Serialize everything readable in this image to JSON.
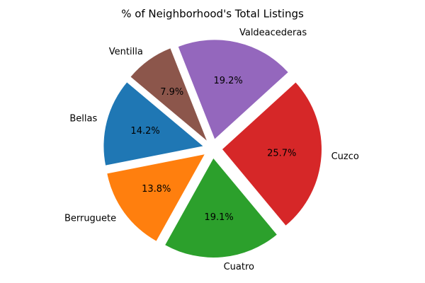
{
  "chart_data": {
    "type": "pie",
    "title": "% of Neighborhood's Total Listings",
    "categories": [
      "Bellas",
      "Berruguete",
      "Cuatro",
      "Cuzco",
      "Valdeacederas",
      "Ventilla"
    ],
    "values": [
      14.2,
      13.8,
      19.1,
      25.7,
      19.2,
      7.9
    ],
    "value_labels": [
      "14.2%",
      "13.8%",
      "19.1%",
      "25.7%",
      "19.2%",
      "7.9%"
    ],
    "colors": [
      "#1f77b4",
      "#ff7f0e",
      "#2ca02c",
      "#d62728",
      "#9467bd",
      "#8c564b"
    ]
  }
}
